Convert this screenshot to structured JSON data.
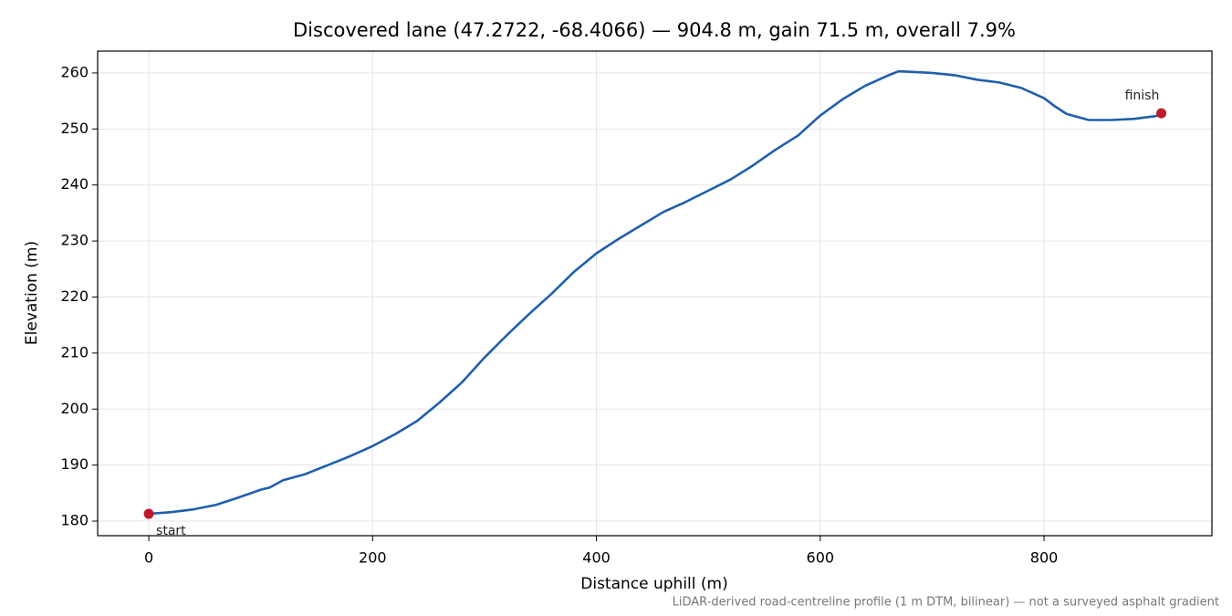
{
  "chart_data": {
    "type": "line",
    "title": "Discovered lane (47.2722, -68.4066) — 904.8 m, gain 71.5 m, overall 7.9%",
    "x_label": "Distance uphill (m)",
    "y_label": "Elevation (m)",
    "note": "LiDAR-derived road-centreline profile (1 m DTM, bilinear) — not a surveyed asphalt gradient",
    "x": [
      0,
      20,
      40,
      60,
      80,
      100,
      108,
      120,
      140,
      160,
      180,
      200,
      220,
      240,
      260,
      280,
      300,
      320,
      340,
      360,
      380,
      400,
      420,
      440,
      460,
      480,
      500,
      520,
      540,
      560,
      580,
      600,
      620,
      640,
      660,
      670,
      680,
      700,
      720,
      740,
      760,
      780,
      800,
      810,
      820,
      840,
      860,
      880,
      900,
      904.8
    ],
    "series": [
      {
        "color": "#1f5fad",
        "marker_color": "#c0192c",
        "values": [
          181.3,
          181.6,
          182.1,
          182.9,
          184.2,
          185.6,
          186.0,
          187.3,
          188.4,
          190.0,
          191.6,
          193.4,
          195.5,
          197.9,
          201.2,
          204.8,
          209.2,
          213.2,
          217.0,
          220.6,
          224.5,
          227.8,
          230.4,
          232.8,
          235.2,
          237.0,
          239.0,
          241.0,
          243.5,
          246.3,
          248.8,
          252.4,
          255.3,
          257.7,
          259.5,
          260.3,
          260.2,
          260.0,
          259.6,
          258.8,
          258.3,
          257.3,
          255.5,
          254.0,
          252.7,
          251.6,
          251.6,
          251.8,
          252.3,
          252.8
        ]
      }
    ],
    "start_label": "start",
    "finish_label": "finish",
    "xlim": [
      -45.7,
      950
    ],
    "ylim": [
      177.4,
      263.9
    ],
    "xticks": [
      0,
      200,
      400,
      600,
      800
    ],
    "yticks": [
      180,
      190,
      200,
      210,
      220,
      230,
      240,
      250,
      260
    ],
    "grid": true
  }
}
